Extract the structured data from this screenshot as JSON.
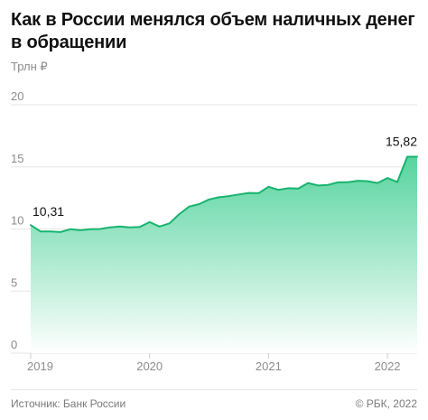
{
  "header": {
    "title_line1": "Как в России менялся объем наличных денег",
    "title_line2": "в обращении"
  },
  "footer": {
    "source": "Источник: Банк России",
    "copyright": "© РБК, 2022"
  },
  "colors": {
    "line": "#18b46f",
    "fill_top": "#4fd29a",
    "fill_bottom": "#ffffff",
    "grid": "#e5e5e5",
    "axis_text": "#8c8c8c"
  },
  "chart_data": {
    "type": "area",
    "title": "Как в России менялся объем наличных денег в обращении",
    "ylabel": "Трлн ₽",
    "xlabel": "",
    "ylim": [
      0,
      20
    ],
    "xlim": [
      2019.0,
      2022.25
    ],
    "y_ticks": [
      "0",
      "5",
      "10",
      "15",
      "20"
    ],
    "x_ticks": [
      {
        "value": 2019.0,
        "label": "2019"
      },
      {
        "value": 2020.0,
        "label": "2020"
      },
      {
        "value": 2021.0,
        "label": "2021"
      },
      {
        "value": 2022.0,
        "label": "2022"
      }
    ],
    "grid": true,
    "series": [
      {
        "x": [
          2019.0,
          2019.083,
          2019.167,
          2019.25,
          2019.333,
          2019.417,
          2019.5,
          2019.583,
          2019.667,
          2019.75,
          2019.833,
          2019.917,
          2020.0,
          2020.083,
          2020.167,
          2020.25,
          2020.333,
          2020.417,
          2020.5,
          2020.583,
          2020.667,
          2020.75,
          2020.833,
          2020.917,
          2021.0,
          2021.083,
          2021.167,
          2021.25,
          2021.333,
          2021.417,
          2021.5,
          2021.583,
          2021.667,
          2021.75,
          2021.833,
          2021.917,
          2022.0,
          2022.083,
          2022.167,
          2022.25
        ],
        "values": [
          10.31,
          9.8,
          9.8,
          9.75,
          9.98,
          9.9,
          9.98,
          10.0,
          10.13,
          10.2,
          10.13,
          10.16,
          10.55,
          10.2,
          10.45,
          11.2,
          11.8,
          12.0,
          12.38,
          12.55,
          12.65,
          12.78,
          12.9,
          12.88,
          13.4,
          13.15,
          13.28,
          13.25,
          13.7,
          13.5,
          13.55,
          13.75,
          13.77,
          13.88,
          13.85,
          13.7,
          14.1,
          13.78,
          15.82,
          15.82
        ]
      }
    ],
    "annotations": [
      {
        "label": "10,31",
        "x": 2019.0,
        "y": 10.31
      },
      {
        "label": "15,82",
        "x": 2022.25,
        "y": 15.82
      }
    ]
  }
}
